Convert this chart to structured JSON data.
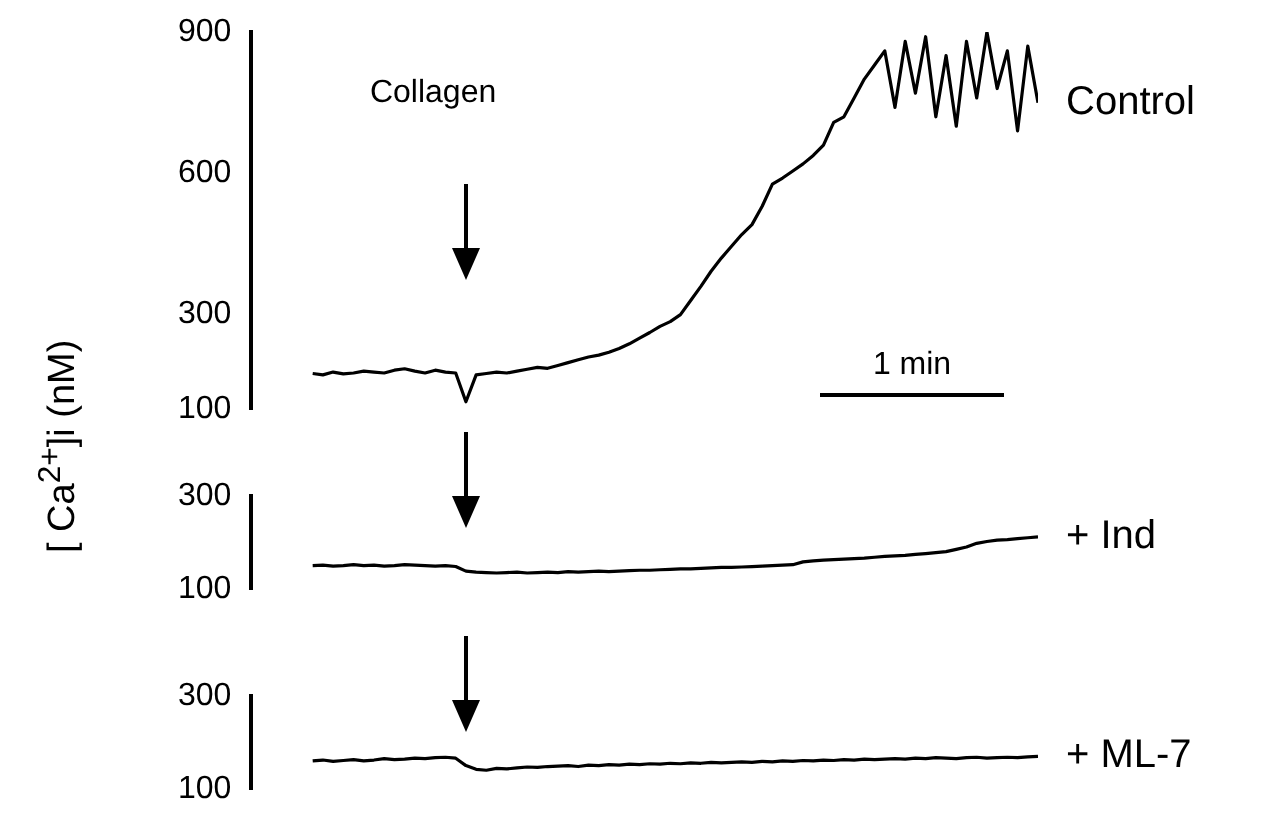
{
  "chart_data": [
    {
      "type": "line",
      "ylabel": "[ Ca$^{2+}$]i (nM)",
      "annotations": [
        "Collagen",
        "1 min"
      ],
      "tick_labels": "y",
      "ylim": [
        100,
        900
      ],
      "yticks": [
        100,
        300,
        600,
        900
      ],
      "categories": [
        null,
        null,
        null,
        null,
        null,
        null,
        null,
        null,
        null,
        null,
        null,
        null,
        null,
        null,
        null,
        null,
        null,
        null,
        null,
        null,
        null,
        null,
        null,
        null,
        null,
        null,
        null,
        null,
        null,
        null,
        null,
        null,
        null,
        null,
        null,
        null,
        null,
        null,
        null,
        null,
        null,
        null,
        null,
        null,
        null,
        null,
        null,
        null,
        null,
        null,
        null,
        null,
        null,
        null,
        null,
        null,
        null,
        null,
        null,
        null,
        null,
        null,
        null,
        null,
        null,
        null,
        null,
        null,
        null,
        null,
        null,
        null
      ],
      "series": [
        {
          "name": "Control",
          "color": "#000000",
          "values": [
            175,
            172,
            178,
            174,
            176,
            180,
            178,
            176,
            182,
            185,
            180,
            176,
            182,
            178,
            176,
            115,
            172,
            175,
            178,
            176,
            180,
            184,
            188,
            186,
            192,
            198,
            204,
            210,
            214,
            220,
            228,
            238,
            250,
            262,
            275,
            285,
            300,
            330,
            360,
            392,
            420,
            445,
            470,
            491,
            530,
            577,
            590,
            605,
            620,
            638,
            660,
            708,
            720,
            760,
            800,
            830,
            860,
            740,
            880,
            770,
            890,
            720,
            850,
            700,
            880,
            760,
            900,
            780,
            860,
            690,
            870,
            750
          ]
        }
      ]
    },
    {
      "type": "line",
      "tick_labels": "y",
      "ylim": [
        100,
        300
      ],
      "yticks": [
        100,
        300
      ],
      "categories": [
        null,
        null,
        null,
        null,
        null,
        null,
        null,
        null,
        null,
        null,
        null,
        null,
        null,
        null,
        null,
        null,
        null,
        null,
        null,
        null,
        null,
        null,
        null,
        null,
        null,
        null,
        null,
        null,
        null,
        null,
        null,
        null,
        null,
        null,
        null,
        null,
        null,
        null,
        null,
        null,
        null,
        null,
        null,
        null,
        null,
        null,
        null,
        null,
        null,
        null,
        null,
        null,
        null,
        null,
        null,
        null,
        null,
        null,
        null,
        null,
        null,
        null,
        null,
        null,
        null,
        null,
        null,
        null,
        null,
        null,
        null,
        null
      ],
      "series": [
        {
          "name": "+ Ind",
          "color": "#000000",
          "values": [
            150,
            151,
            149,
            150,
            152,
            150,
            151,
            149,
            150,
            152,
            151,
            150,
            149,
            150,
            148,
            138,
            136,
            135,
            134,
            135,
            136,
            134,
            135,
            136,
            135,
            137,
            136,
            137,
            138,
            137,
            138,
            139,
            140,
            140,
            141,
            142,
            143,
            143,
            144,
            145,
            146,
            146,
            147,
            148,
            149,
            150,
            151,
            152,
            158,
            160,
            162,
            163,
            164,
            165,
            166,
            168,
            170,
            171,
            172,
            174,
            176,
            178,
            180,
            185,
            190,
            198,
            202,
            205,
            206,
            208,
            210,
            212
          ]
        }
      ]
    },
    {
      "type": "line",
      "tick_labels": "y",
      "ylim": [
        100,
        300
      ],
      "yticks": [
        100,
        300
      ],
      "categories": [
        null,
        null,
        null,
        null,
        null,
        null,
        null,
        null,
        null,
        null,
        null,
        null,
        null,
        null,
        null,
        null,
        null,
        null,
        null,
        null,
        null,
        null,
        null,
        null,
        null,
        null,
        null,
        null,
        null,
        null,
        null,
        null,
        null,
        null,
        null,
        null,
        null,
        null,
        null,
        null,
        null,
        null,
        null,
        null,
        null,
        null,
        null,
        null,
        null,
        null,
        null,
        null,
        null,
        null,
        null,
        null,
        null,
        null,
        null,
        null,
        null,
        null,
        null,
        null,
        null,
        null,
        null,
        null,
        null,
        null,
        null,
        null
      ],
      "series": [
        {
          "name": "+ ML-7",
          "color": "#000000",
          "values": [
            160,
            162,
            159,
            161,
            163,
            160,
            162,
            165,
            163,
            164,
            166,
            165,
            167,
            168,
            166,
            150,
            142,
            140,
            144,
            143,
            145,
            147,
            146,
            148,
            149,
            150,
            148,
            151,
            150,
            152,
            151,
            153,
            152,
            154,
            153,
            155,
            154,
            156,
            155,
            157,
            156,
            157,
            158,
            157,
            159,
            158,
            160,
            159,
            161,
            160,
            162,
            161,
            163,
            162,
            164,
            163,
            164,
            165,
            164,
            166,
            165,
            167,
            166,
            165,
            167,
            168,
            166,
            167,
            168,
            167,
            169,
            170
          ]
        }
      ]
    }
  ]
}
